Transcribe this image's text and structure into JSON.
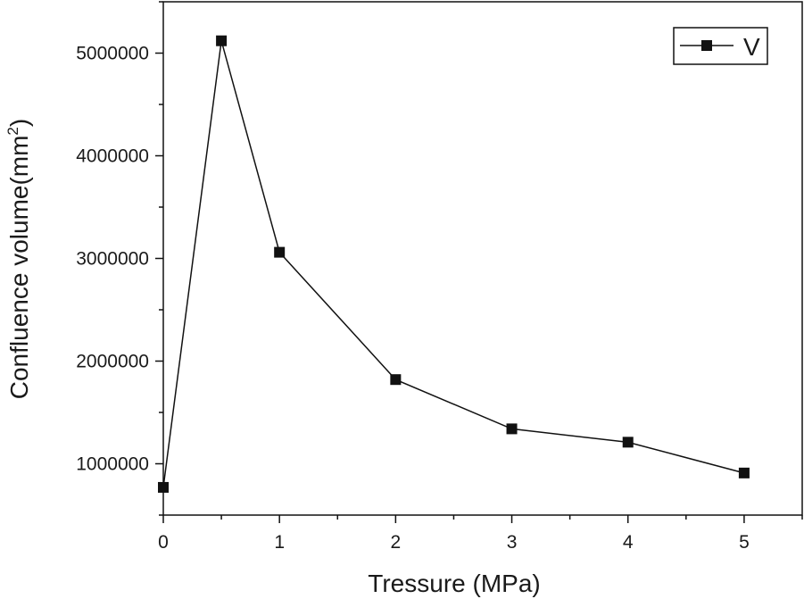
{
  "chart_data": {
    "type": "line",
    "title": "",
    "xlabel": "Tressure (MPa)",
    "ylabel_main": "Confluence volume(mm",
    "ylabel_sup": "2",
    "ylabel_end": ")",
    "xlim": [
      0,
      5.5
    ],
    "ylim": [
      500000,
      5500000
    ],
    "x_ticks": [
      0,
      1,
      2,
      3,
      4,
      5
    ],
    "x_tick_labels": [
      "0",
      "1",
      "2",
      "3",
      "4",
      "5"
    ],
    "y_ticks": [
      1000000,
      2000000,
      3000000,
      4000000,
      5000000
    ],
    "y_tick_labels": [
      "1000000",
      "2000000",
      "3000000",
      "4000000",
      "5000000"
    ],
    "grid": false,
    "legend_position": "top-right",
    "series": [
      {
        "name": "V",
        "color": "#111111",
        "marker": "square",
        "x": [
          0,
          0.5,
          1,
          2,
          3,
          4,
          5
        ],
        "y": [
          770000,
          5120000,
          3060000,
          1820000,
          1340000,
          1210000,
          910000
        ]
      }
    ]
  }
}
